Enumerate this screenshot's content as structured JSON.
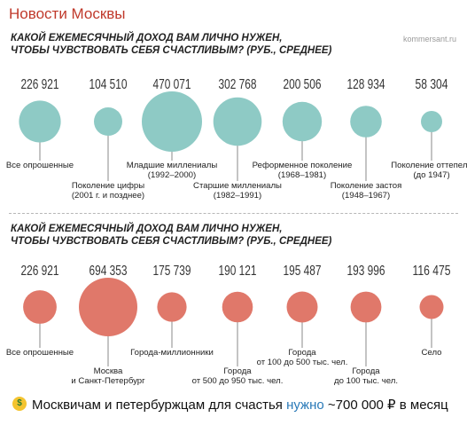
{
  "channel": {
    "name": "Новости Москвы"
  },
  "caption": {
    "before": "Москвичам и петербуржцам для счастья ",
    "link": "нужно",
    "after": " ~700 000 ₽ в месяц",
    "emoji": "money-mouth-face-icon"
  },
  "colors": {
    "teal": "#8ecac5",
    "coral": "#e0786a",
    "channel": "#c0392b",
    "link": "#2a7ab8"
  },
  "chart_data": [
    {
      "type": "bubble",
      "title": [
        "КАКОЙ ЕЖЕМЕСЯЧНЫЙ ДОХОД ВАМ ЛИЧНО НУЖЕН,",
        "ЧТОБЫ ЧУВСТВОВАТЬ СЕБЯ СЧАСТЛИВЫМ? (РУБ., СРЕДНЕЕ)"
      ],
      "source": "kommersant.ru",
      "color": "#8ecac5",
      "categories": [
        [
          "Все опрошенные"
        ],
        [
          "Поколение цифры",
          "(2001 г. и позднее)"
        ],
        [
          "Младшие миллениалы",
          "(1992–2000)"
        ],
        [
          "Старшие миллениалы",
          "(1982–1991)"
        ],
        [
          "Реформенное поколение",
          "(1968–1981)"
        ],
        [
          "Поколение застоя",
          "(1948–1967)"
        ],
        [
          "Поколение оттепели",
          "(до 1947)"
        ]
      ],
      "values": [
        226921,
        104510,
        470071,
        302768,
        200506,
        128934,
        58304
      ],
      "value_labels": [
        "226 921",
        "104 510",
        "470 071",
        "302 768",
        "200 506",
        "128 934",
        "58 304"
      ],
      "label_position": [
        "high",
        "low",
        "high",
        "low",
        "high",
        "low",
        "high"
      ]
    },
    {
      "type": "bubble",
      "title": [
        "КАКОЙ ЕЖЕМЕСЯЧНЫЙ ДОХОД ВАМ ЛИЧНО НУЖЕН,",
        "ЧТОБЫ ЧУВСТВОВАТЬ СЕБЯ СЧАСТЛИВЫМ? (РУБ., СРЕДНЕЕ)"
      ],
      "source": "",
      "color": "#e0786a",
      "categories": [
        [
          "Все опрошенные"
        ],
        [
          "Москва",
          "и Санкт-Петербург"
        ],
        [
          "Города-миллионники"
        ],
        [
          "Города",
          "от 500 до 950 тыс. чел."
        ],
        [
          "Города",
          "от 100 до 500 тыс. чел."
        ],
        [
          "Города",
          "до 100 тыс. чел."
        ],
        [
          "Село"
        ]
      ],
      "values": [
        226921,
        694353,
        175739,
        190121,
        195487,
        193996,
        116475
      ],
      "value_labels": [
        "226 921",
        "694 353",
        "175 739",
        "190 121",
        "195 487",
        "193 996",
        "116 475"
      ],
      "label_position": [
        "high",
        "low",
        "high",
        "low",
        "high",
        "low",
        "high"
      ]
    }
  ]
}
